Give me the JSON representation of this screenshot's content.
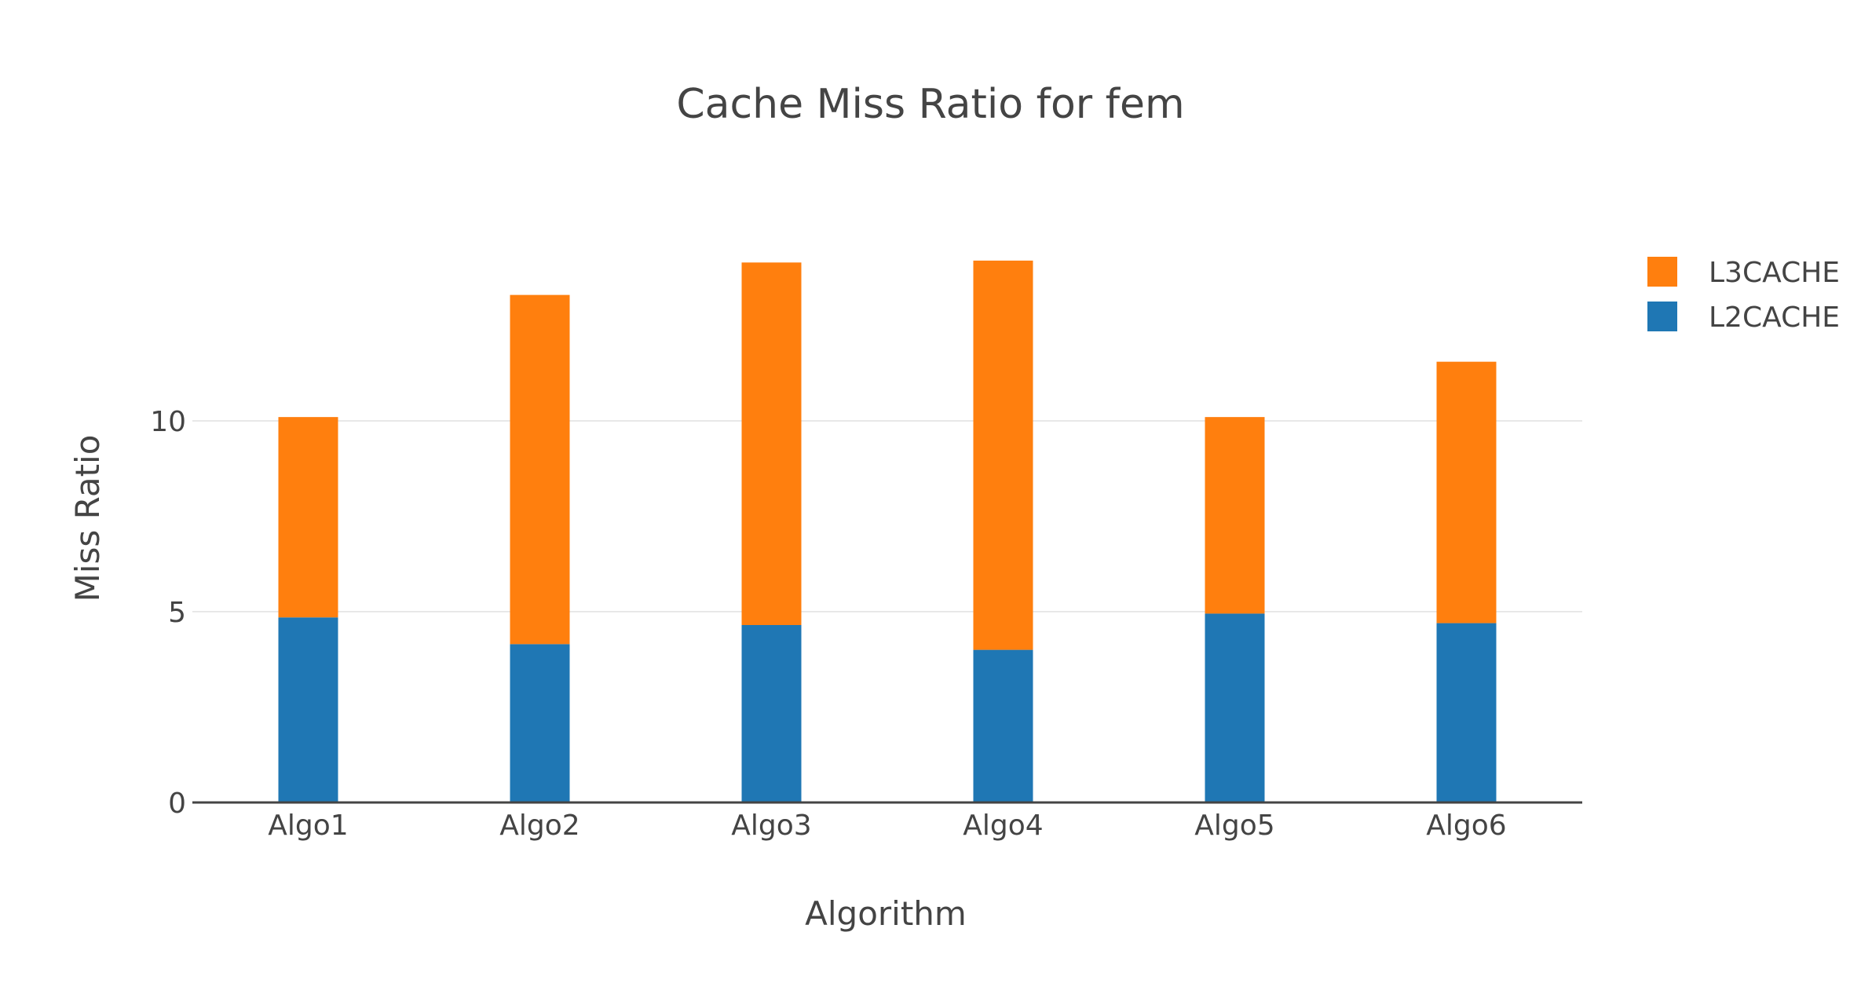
{
  "chart_data": {
    "type": "bar",
    "barmode": "stack",
    "title": "Cache Miss Ratio for fem",
    "xlabel": "Algorithm",
    "ylabel": "Miss Ratio",
    "categories": [
      "Algo1",
      "Algo2",
      "Algo3",
      "Algo4",
      "Algo5",
      "Algo6"
    ],
    "yticks": [
      0,
      5,
      10
    ],
    "ylim": [
      0,
      17
    ],
    "grid": true,
    "legend_position": "top-right",
    "series": [
      {
        "name": "L2CACHE",
        "color": "#1f77b4",
        "values": [
          4.85,
          4.15,
          4.65,
          4.0,
          4.95,
          4.7
        ]
      },
      {
        "name": "L3CACHE",
        "color": "#ff7f0e",
        "values": [
          5.25,
          9.15,
          9.5,
          10.2,
          5.15,
          6.85
        ]
      }
    ],
    "legend_order": [
      "L3CACHE",
      "L2CACHE"
    ]
  }
}
